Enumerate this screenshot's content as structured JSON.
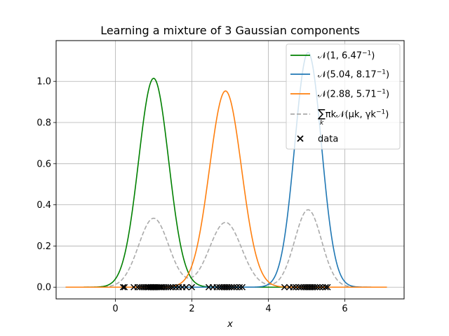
{
  "chart_data": {
    "type": "line",
    "title": "Learning a mixture of 3 Gaussian components",
    "xlabel": "x",
    "ylabel": "",
    "xlim": [
      -1.55,
      7.55
    ],
    "ylim": [
      -0.057,
      1.198
    ],
    "xticks": [
      0,
      2,
      4,
      6
    ],
    "yticks": [
      0.0,
      0.2,
      0.4,
      0.6,
      0.8,
      1.0
    ],
    "xtick_labels": [
      "0",
      "2",
      "4",
      "6"
    ],
    "ytick_labels": [
      "0.0",
      "0.2",
      "0.4",
      "0.6",
      "0.8",
      "1.0"
    ],
    "grid": true,
    "legend_position": "top-right",
    "x_range": [
      -1.3,
      7.1
    ],
    "series": [
      {
        "name": "𝒩(1, 6.47⁻¹)",
        "legend_main": "𝒩(1, 6.47",
        "legend_sup": "−1",
        "legend_tail": ")",
        "kind": "gaussian",
        "mu": 1.0,
        "precision": 6.47,
        "weight": 1.0,
        "color": "#008000",
        "dashed": false
      },
      {
        "name": "𝒩(5.04, 8.17⁻¹)",
        "legend_main": "𝒩(5.04, 8.17",
        "legend_sup": "−1",
        "legend_tail": ")",
        "kind": "gaussian",
        "mu": 5.04,
        "precision": 8.17,
        "weight": 1.0,
        "color": "#1f77b4",
        "dashed": false
      },
      {
        "name": "𝒩(2.88, 5.71⁻¹)",
        "legend_main": "𝒩(2.88, 5.71",
        "legend_sup": "−1",
        "legend_tail": ")",
        "kind": "gaussian",
        "mu": 2.88,
        "precision": 5.71,
        "weight": 1.0,
        "color": "#ff7f0e",
        "dashed": false
      },
      {
        "name": "∑k πk 𝒩(μk, γk⁻¹)",
        "legend_main": "πk𝒩(μk, γk",
        "legend_sup": "−1",
        "legend_tail": ")",
        "legend_sum": "∑",
        "legend_sum_sub": "k",
        "kind": "mixture",
        "color": "#aaaaaa",
        "dashed": true,
        "components": [
          {
            "mu": 1.0,
            "precision": 6.47,
            "weight": 0.33
          },
          {
            "mu": 5.04,
            "precision": 8.17,
            "weight": 0.33
          },
          {
            "mu": 2.88,
            "precision": 5.71,
            "weight": 0.33
          }
        ]
      }
    ],
    "data_points": {
      "name": "data",
      "marker": "x",
      "color": "#000000",
      "y": 0.0,
      "x": [
        0.2,
        0.24,
        0.48,
        0.58,
        0.64,
        0.7,
        0.75,
        0.8,
        0.85,
        0.88,
        0.92,
        0.95,
        0.98,
        1.0,
        1.03,
        1.06,
        1.1,
        1.14,
        1.18,
        1.22,
        1.27,
        1.32,
        1.38,
        1.44,
        1.5,
        1.58,
        1.66,
        1.75,
        1.85,
        2.0,
        2.44,
        2.55,
        2.65,
        2.72,
        2.78,
        2.83,
        2.88,
        2.93,
        2.98,
        3.04,
        3.1,
        3.17,
        3.25,
        3.32,
        4.42,
        4.55,
        4.65,
        4.72,
        4.8,
        4.86,
        4.92,
        4.97,
        5.02,
        5.07,
        5.12,
        5.17,
        5.22,
        5.28,
        5.35,
        5.42,
        5.5,
        5.55
      ]
    }
  }
}
